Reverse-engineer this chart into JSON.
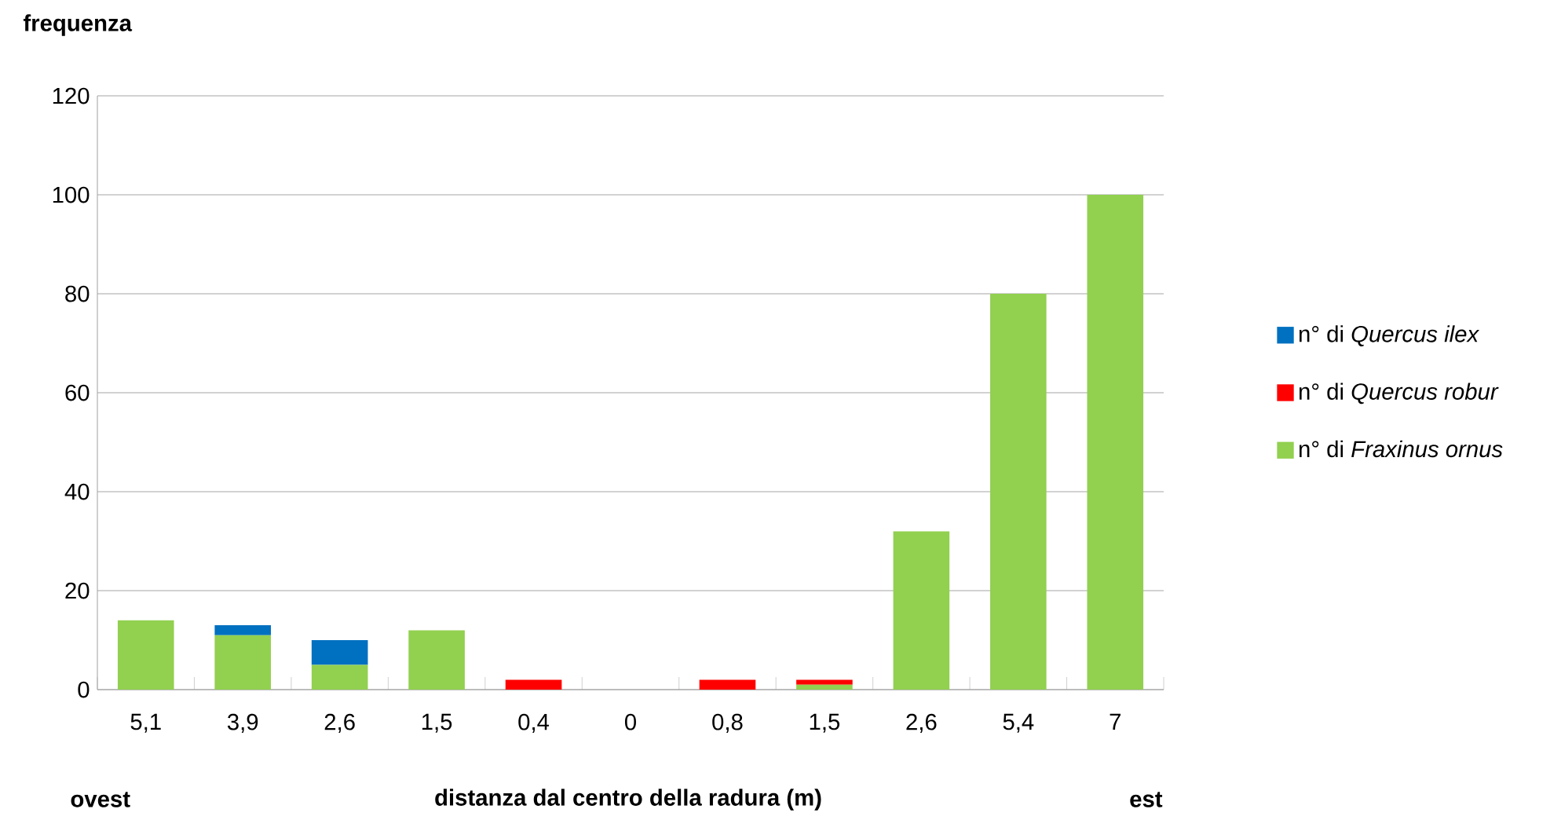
{
  "chart_data": {
    "type": "bar",
    "stacked": true,
    "xlabel": "distanza dal centro della radura (m)",
    "ylabel": "frequenza",
    "categories": [
      "5,1",
      "3,9",
      "2,6",
      "1,5",
      "0,4",
      "0",
      "0,8",
      "1,5",
      "2,6",
      "5,4",
      "7"
    ],
    "series": [
      {
        "name": "n° di *Fraxinus ornus*",
        "color": "#92d050",
        "values": [
          14,
          11,
          5,
          12,
          0,
          0,
          0,
          1,
          32,
          80,
          100
        ]
      },
      {
        "name": "n° di *Quercus robur*",
        "color": "#ff0000",
        "values": [
          0,
          0,
          0,
          0,
          2,
          0,
          2,
          1,
          0,
          0,
          0
        ]
      },
      {
        "name": "n° di *Quercus ilex*",
        "color": "#0070c0",
        "values": [
          0,
          2,
          5,
          0,
          0,
          0,
          0,
          0,
          0,
          0,
          0
        ]
      }
    ],
    "ylim": [
      0,
      120
    ],
    "yticks": [
      0,
      20,
      40,
      60,
      80,
      100,
      120
    ],
    "grid": "y",
    "legend": "right",
    "annotations": [
      "ovest",
      "est"
    ]
  }
}
